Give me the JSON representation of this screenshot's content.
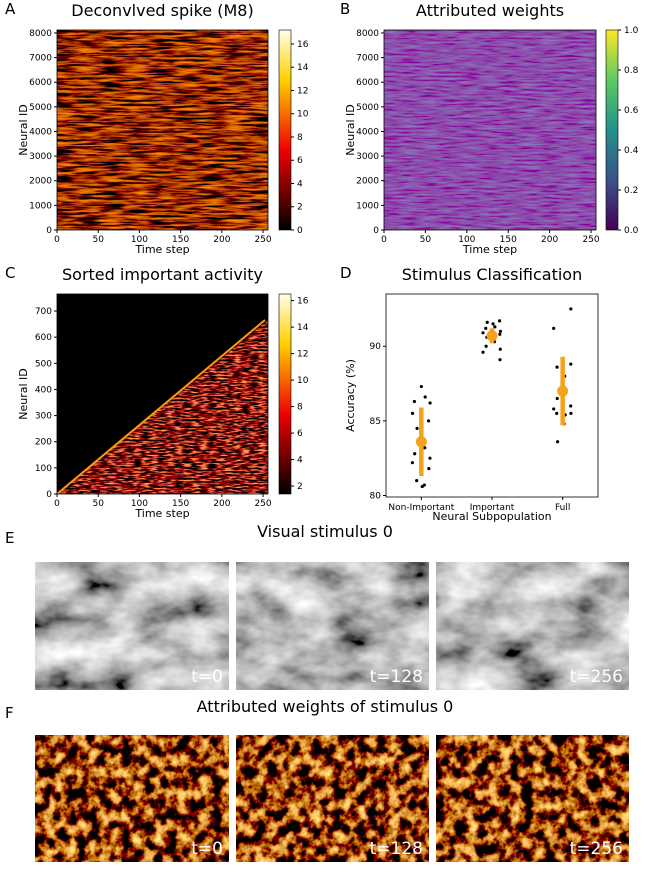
{
  "chart_data": [
    {
      "type": "heatmap",
      "panel": "A",
      "title": "Deconvlved spike (M8)",
      "xlabel": "Time step",
      "ylabel": "Neural ID",
      "xlim": [
        0,
        256
      ],
      "ylim": [
        0,
        8120
      ],
      "xticks": [
        0,
        50,
        100,
        150,
        200,
        250
      ],
      "yticks": [
        0,
        1000,
        2000,
        3000,
        4000,
        5000,
        6000,
        7000,
        8000
      ],
      "colormap": "hot",
      "clim": [
        0,
        17.2
      ],
      "cticks": [
        0,
        2,
        4,
        6,
        8,
        10,
        12,
        14,
        16
      ]
    },
    {
      "type": "heatmap",
      "panel": "B",
      "title": "Attributed weights",
      "xlabel": "Time step",
      "ylabel": "Neural ID",
      "xlim": [
        0,
        256
      ],
      "ylim": [
        0,
        8120
      ],
      "xticks": [
        0,
        50,
        100,
        150,
        200,
        250
      ],
      "yticks": [
        0,
        1000,
        2000,
        3000,
        4000,
        5000,
        6000,
        7000,
        8000
      ],
      "colormap": "viridis",
      "clim": [
        0,
        1
      ],
      "cticks": [
        {
          "value": 0,
          "label": "0.0"
        },
        {
          "value": 0.2,
          "label": "0.2"
        },
        {
          "value": 0.4,
          "label": "0.4"
        },
        {
          "value": 0.6,
          "label": "0.6"
        },
        {
          "value": 0.8,
          "label": "0.8"
        },
        {
          "value": 1,
          "label": "1.0"
        }
      ]
    },
    {
      "type": "heatmap",
      "panel": "C",
      "title": "Sorted important activity",
      "xlabel": "Time step",
      "ylabel": "Neural ID",
      "xlim": [
        0,
        256
      ],
      "ylim": [
        0,
        765
      ],
      "xticks": [
        0,
        50,
        100,
        150,
        200,
        250
      ],
      "yticks": [
        0,
        100,
        200,
        300,
        400,
        500,
        600,
        700
      ],
      "colormap": "hot",
      "clim": [
        1.4,
        16.5
      ],
      "cticks": [
        2,
        4,
        6,
        8,
        10,
        12,
        14,
        16
      ]
    },
    {
      "type": "strip",
      "panel": "D",
      "title": "Stimulus Classification",
      "xlabel": "Neural Subpopulation",
      "ylabel": "Accuracy (%)",
      "categories": [
        "Non-Important",
        "Important",
        "Full"
      ],
      "values": [
        83.6,
        90.7,
        87.0
      ],
      "errors": [
        2.3,
        0.5,
        2.3
      ],
      "points": [
        [
          87.3,
          86.6,
          86.3,
          86.2,
          85.5,
          85.0,
          84.5,
          83.8,
          83.2,
          82.8,
          82.5,
          82.2,
          81.8,
          81.0,
          80.6,
          80.7
        ],
        [
          91.7,
          91.6,
          91.5,
          91.3,
          91.2,
          91.0,
          90.9,
          90.8,
          90.6,
          90.5,
          90.3,
          90.0,
          89.8,
          89.6,
          89.1
        ],
        [
          92.5,
          91.2,
          88.8,
          88.6,
          88.0,
          87.2,
          86.5,
          86.0,
          85.8,
          85.5,
          85.5,
          85.4,
          84.8,
          83.6
        ]
      ],
      "color": "#f5a21b",
      "point_color": "#000000",
      "ylim": [
        79.9,
        93.5
      ],
      "yticks": [
        80,
        85,
        90
      ]
    },
    {
      "type": "image",
      "panel": "E",
      "title": "Visual stimulus 0",
      "style": "grayscale",
      "labels": [
        "t=0",
        "t=128",
        "t=256"
      ]
    },
    {
      "type": "image",
      "panel": "F",
      "title": "Attributed weights of stimulus 0",
      "style": "heat",
      "labels": [
        "t=0",
        "t=128",
        "t=256"
      ]
    }
  ]
}
